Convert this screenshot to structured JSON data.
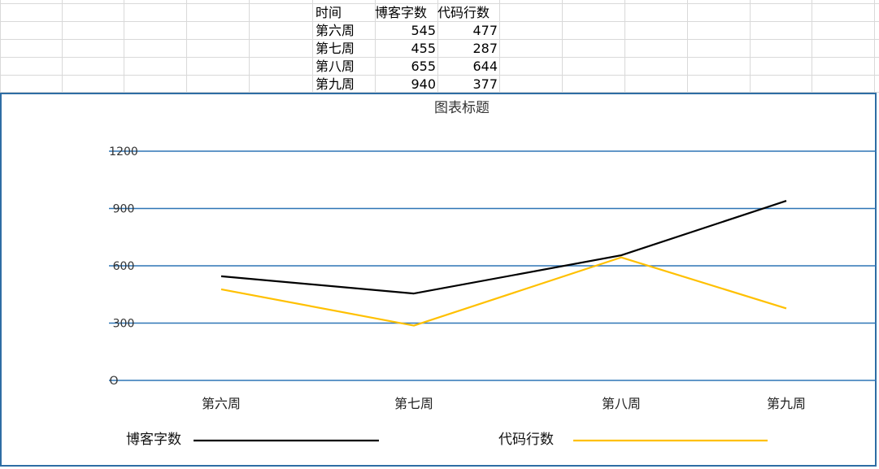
{
  "table": {
    "headers": [
      "时间",
      "博客字数",
      "代码行数"
    ],
    "rows": [
      [
        "第六周",
        "545",
        "477"
      ],
      [
        "第七周",
        "455",
        "287"
      ],
      [
        "第八周",
        "655",
        "644"
      ],
      [
        "第九周",
        "940",
        "377"
      ]
    ]
  },
  "chart_data": {
    "type": "line",
    "title": "图表标题",
    "categories": [
      "第六周",
      "第七周",
      "第八周",
      "第九周"
    ],
    "yticks": [
      "O",
      "300",
      "600",
      "900",
      "1200"
    ],
    "series": [
      {
        "name": "博客字数",
        "values": [
          545,
          455,
          655,
          940
        ],
        "color": "#000000"
      },
      {
        "name": "代码行数",
        "values": [
          477,
          287,
          644,
          377
        ],
        "color": "#ffc000"
      }
    ],
    "ylim": [
      0,
      1200
    ],
    "grid": true,
    "grid_color": "#2e75b6",
    "legend_position": "bottom"
  }
}
